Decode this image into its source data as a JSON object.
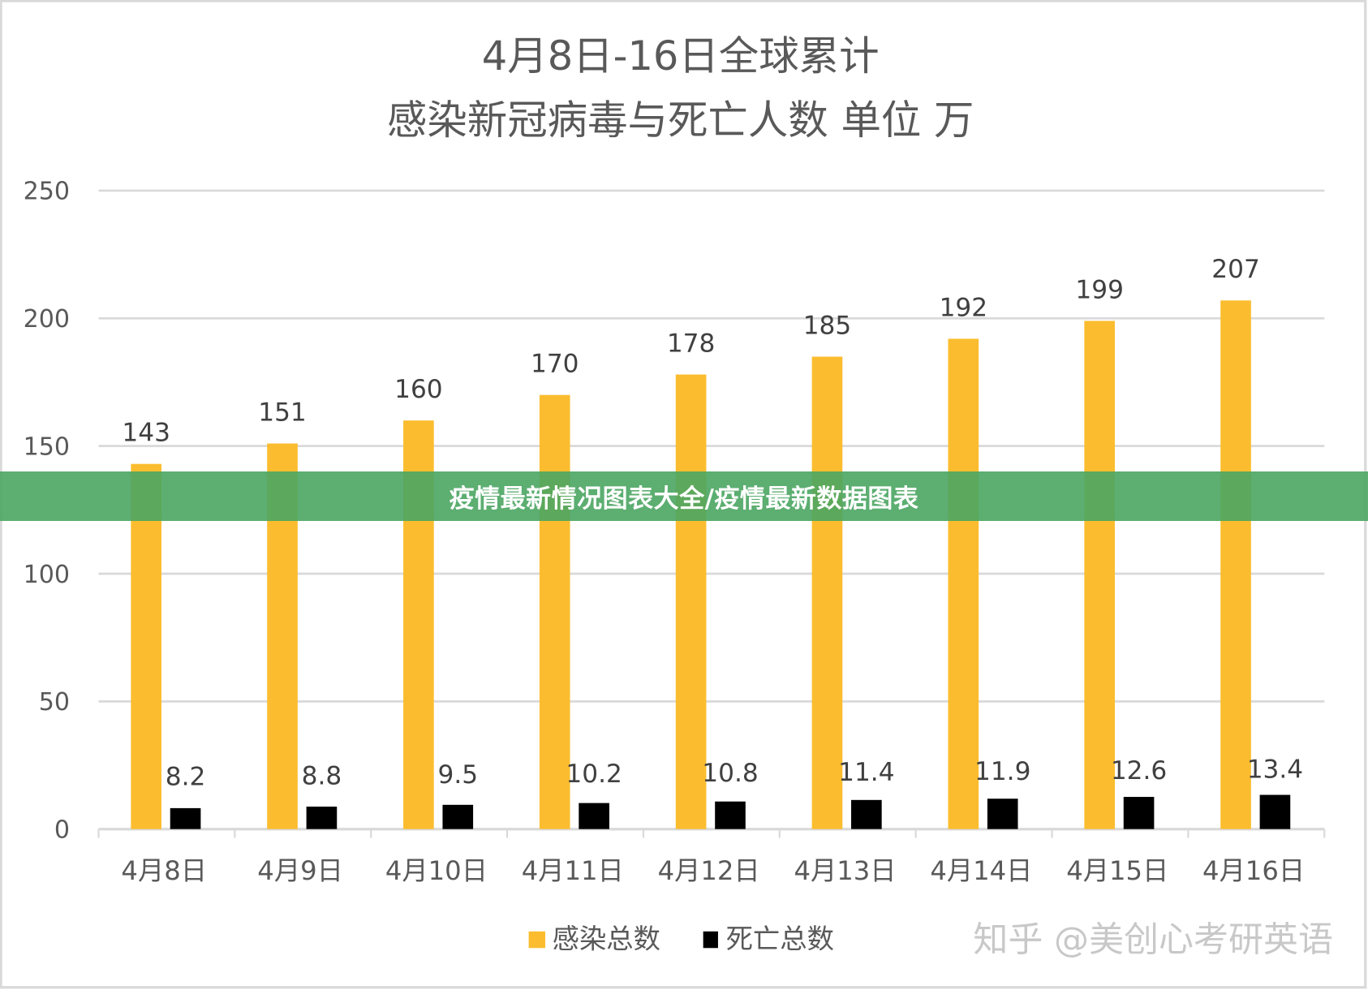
{
  "chart_data": {
    "type": "bar",
    "title": [
      "4月8日-16日全球累计",
      "感染新冠病毒与死亡人数 单位 万"
    ],
    "xlabel": "",
    "ylabel": "",
    "ylim": [
      0,
      250
    ],
    "yticks": [
      0,
      50,
      100,
      150,
      200,
      250
    ],
    "grid": true,
    "legend_position": "bottom",
    "categories": [
      "4月8日",
      "4月9日",
      "4月10日",
      "4月11日",
      "4月12日",
      "4月13日",
      "4月14日",
      "4月15日",
      "4月16日"
    ],
    "series": [
      {
        "name": "感染总数",
        "color": "#FBBD2F",
        "values": [
          143,
          151,
          160,
          170,
          178,
          185,
          192,
          199,
          207
        ],
        "labels": [
          "143",
          "151",
          "160",
          "170",
          "178",
          "185",
          "192",
          "199",
          "207"
        ]
      },
      {
        "name": "死亡总数",
        "color": "#000000",
        "values": [
          8.2,
          8.8,
          9.5,
          10.2,
          10.8,
          11.4,
          11.9,
          12.6,
          13.4
        ],
        "labels": [
          "8.2",
          "8.8",
          "9.5",
          "10.2",
          "10.8",
          "11.4",
          "11.9",
          "12.6",
          "13.4"
        ]
      }
    ]
  },
  "watermark": "知乎 @美创心考研英语",
  "banner": "疫情最新情况图表大全/疫情最新数据图表"
}
